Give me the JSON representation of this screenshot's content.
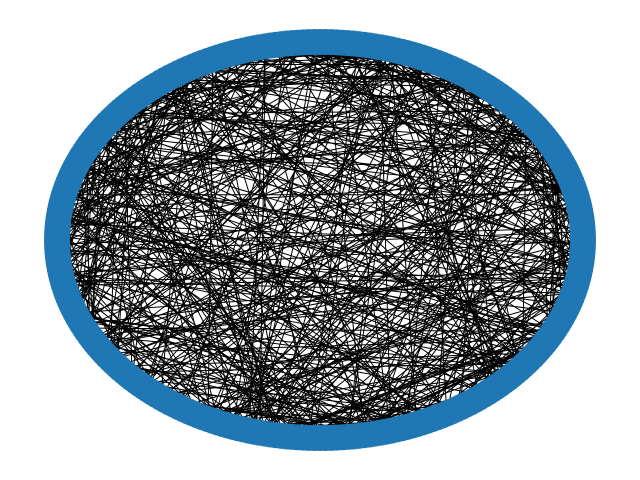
{
  "graph": {
    "layout": "circular",
    "node_count": 300,
    "edge_count": 600,
    "node_color": "#1f77b4",
    "edge_color": "#000000",
    "background_color": "#ffffff"
  }
}
